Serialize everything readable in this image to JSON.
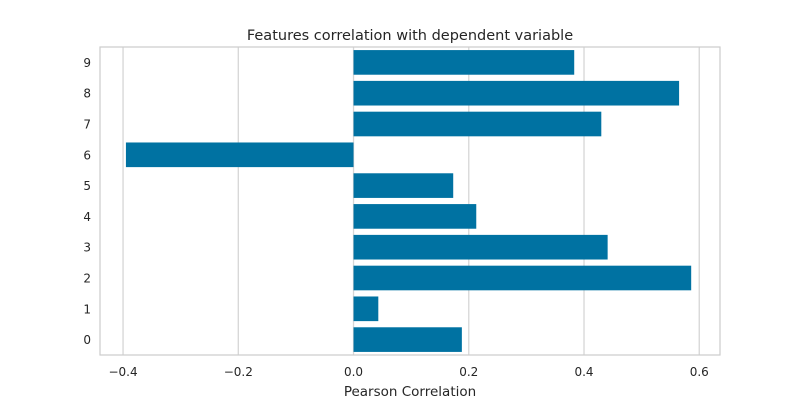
{
  "chart_data": {
    "type": "bar",
    "orientation": "horizontal",
    "title": "Features correlation with dependent variable",
    "xlabel": "Pearson Correlation",
    "ylabel": "",
    "categories": [
      "0",
      "1",
      "2",
      "3",
      "4",
      "5",
      "6",
      "7",
      "8",
      "9"
    ],
    "values": [
      0.188,
      0.043,
      0.586,
      0.441,
      0.213,
      0.173,
      -0.395,
      0.43,
      0.565,
      0.383
    ],
    "xlim": [
      -0.44,
      0.636
    ],
    "xticks": [
      -0.4,
      -0.2,
      0.0,
      0.2,
      0.4,
      0.6
    ],
    "xtick_labels": [
      "−0.4",
      "−0.2",
      "0.0",
      "0.2",
      "0.4",
      "0.6"
    ],
    "grid": "vertical",
    "legend": "none",
    "colors": {
      "bar": "#0072a2",
      "grid": "#d6d6d6",
      "frame": "#cccccc",
      "text": "#262626"
    }
  }
}
